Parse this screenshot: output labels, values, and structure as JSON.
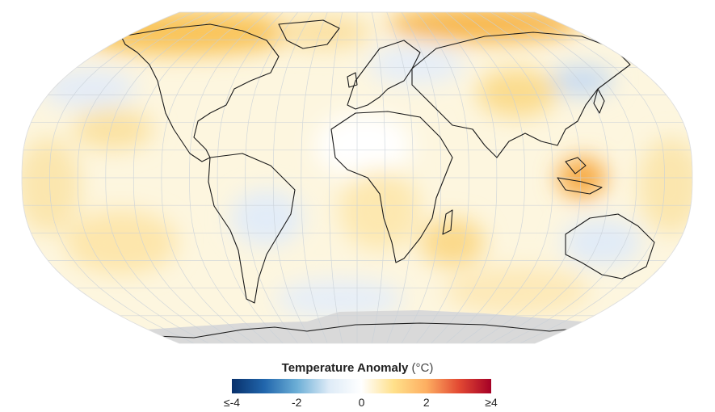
{
  "legend": {
    "title": "Temperature Anomaly",
    "unit": "(°C)",
    "min": -4,
    "max": 4,
    "ticks": [
      {
        "value": -4,
        "label": "≤-4"
      },
      {
        "value": -2,
        "label": "-2"
      },
      {
        "value": 0,
        "label": "0"
      },
      {
        "value": 2,
        "label": "2"
      },
      {
        "value": 4,
        "label": "≥4"
      }
    ],
    "colors": [
      "#08306b",
      "#2166ac",
      "#6baed6",
      "#deebf7",
      "#ffffff",
      "#ffe08a",
      "#fdae61",
      "#e34a33",
      "#a50026"
    ]
  },
  "map": {
    "projection": "robinson",
    "no_data_color": "#d9d9d9",
    "coastline_color": "#1a1a1a",
    "graticule_color": "#c8d0d8"
  }
}
